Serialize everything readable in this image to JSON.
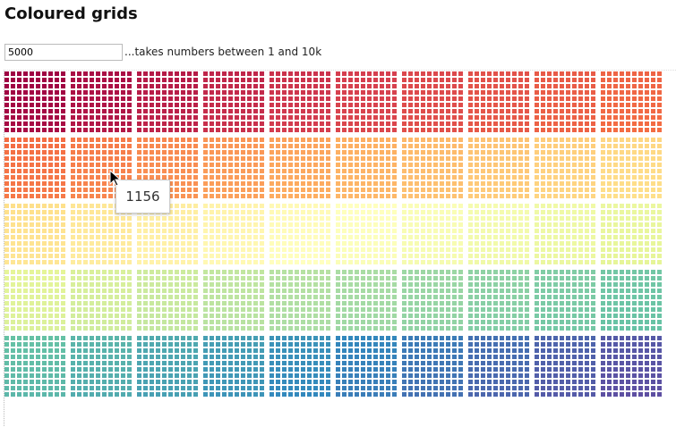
{
  "header": {
    "title": "Coloured grids"
  },
  "controls": {
    "count": 5000,
    "hint": "...takes numbers between 1 and 10k"
  },
  "tooltip": {
    "text": "1156"
  }
}
